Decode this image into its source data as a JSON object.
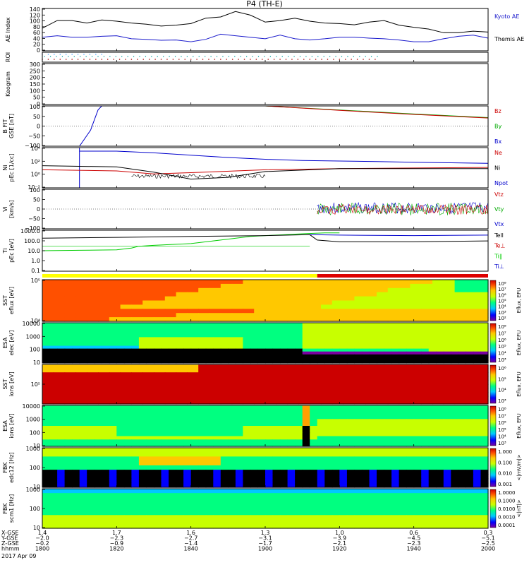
{
  "title": "P4 (TH-E)",
  "date": "2017 Apr 09",
  "colors": {
    "kyoto": "#1a1acc",
    "themis": "#000000",
    "bz": "#cc0000",
    "by": "#00aa00",
    "bx": "#0000cc",
    "ne": "#cc0000",
    "ni": "#000000",
    "npot": "#0000cc",
    "vtz": "#cc0000",
    "vty": "#00aa00",
    "vtx": "#0000cc",
    "tell": "#000000",
    "tepar": "#cc0000",
    "tipar": "#00cc00",
    "tiperp": "#0000cc",
    "roi_bar": "#ffff00",
    "roi_bar2": "#dd0000"
  },
  "chart_data": [
    {
      "type": "line",
      "name": "ae",
      "ylabel": "AE Index",
      "ylim": [
        0,
        140
      ],
      "yticks": [
        "140",
        "120",
        "100",
        "80",
        "60",
        "40",
        "20",
        "0"
      ],
      "legend": [
        "Kyoto AE",
        "Themis AE"
      ],
      "series": [
        {
          "name": "Kyoto AE",
          "x": [
            0,
            2,
            4,
            6,
            8,
            10,
            12,
            14,
            16,
            18,
            20,
            22,
            24,
            26,
            28,
            30,
            32,
            34,
            36,
            38,
            40,
            42,
            44,
            46,
            48,
            50,
            52,
            54,
            56,
            58,
            60
          ],
          "y": [
            45,
            50,
            45,
            45,
            48,
            50,
            40,
            38,
            35,
            36,
            30,
            38,
            55,
            50,
            45,
            40,
            52,
            40,
            36,
            40,
            45,
            45,
            42,
            40,
            36,
            30,
            30,
            40,
            48,
            52,
            42
          ]
        },
        {
          "name": "Themis AE",
          "x": [
            0,
            2,
            4,
            6,
            8,
            10,
            12,
            14,
            16,
            18,
            20,
            22,
            24,
            26,
            28,
            30,
            32,
            34,
            36,
            38,
            40,
            42,
            44,
            46,
            48,
            50,
            52,
            54,
            56,
            58,
            60
          ],
          "y": [
            75,
            100,
            100,
            92,
            102,
            98,
            92,
            88,
            82,
            85,
            90,
            108,
            112,
            130,
            118,
            95,
            100,
            108,
            98,
            92,
            90,
            86,
            95,
            100,
            85,
            78,
            72,
            60,
            60,
            65,
            62
          ]
        }
      ]
    },
    {
      "type": "scatter",
      "name": "roi",
      "ylabel": "ROI"
    },
    {
      "type": "heatmap",
      "name": "keogram",
      "ylabel": "Keogram",
      "ylim": [
        0,
        300
      ],
      "yticks": [
        "300",
        "250",
        "200",
        "150",
        "100",
        "50",
        "0"
      ]
    },
    {
      "type": "line",
      "name": "bfield",
      "ylabel": "B FIT GSE [nT]",
      "ylim": [
        -100,
        100
      ],
      "yticks": [
        "100",
        "50",
        "0",
        "−50",
        "−100"
      ],
      "legend": [
        "Bz",
        "By",
        "Bx"
      ],
      "series": [
        {
          "name": "Bx",
          "x": [
            5,
            6.5,
            7,
            7.5,
            8
          ],
          "y": [
            -100,
            -20,
            30,
            80,
            100
          ]
        },
        {
          "name": "By",
          "x": [
            30,
            40,
            50,
            60
          ],
          "y": [
            100,
            80,
            60,
            42
          ]
        },
        {
          "name": "Bz",
          "x": [
            30,
            40,
            50,
            60
          ],
          "y": [
            100,
            78,
            58,
            40
          ]
        }
      ]
    },
    {
      "type": "line",
      "name": "density",
      "ylabel": "Ni pEc [1/cc]",
      "yticks": [
        "10⁴",
        "10²",
        "10⁰",
        "10⁻²"
      ],
      "legend": [
        "Ne",
        "Ni",
        "Npot"
      ],
      "series": [
        {
          "name": "Ne",
          "x": [
            0,
            10,
            15,
            20,
            30,
            40,
            50,
            60
          ],
          "y": [
            0.8,
            0.6,
            0.1,
            0.3,
            0.8,
            1.0,
            1.1,
            1.2
          ]
        },
        {
          "name": "Ni",
          "x": [
            0,
            10,
            15,
            20,
            25,
            30,
            40,
            50,
            60
          ],
          "y": [
            1.5,
            1.3,
            0.4,
            -0.8,
            -0.5,
            0.5,
            1.0,
            1.0,
            1.0
          ]
        },
        {
          "name": "Npot",
          "x": [
            5,
            10,
            15,
            20,
            25,
            30,
            35,
            40,
            45,
            50,
            55,
            60
          ],
          "y": [
            4,
            4,
            3.7,
            3.3,
            2.9,
            2.6,
            2.4,
            2.3,
            2.2,
            2.1,
            2.0,
            1.9
          ]
        }
      ]
    },
    {
      "type": "line",
      "name": "velocity",
      "ylabel": "Vi [km/s]",
      "ylim": [
        -100,
        100
      ],
      "yticks": [
        "100",
        "50",
        "0",
        "−50",
        "−100"
      ],
      "legend": [
        "Vtz",
        "Vty",
        "Vtx"
      ]
    },
    {
      "type": "line",
      "name": "temperature",
      "ylabel": "Ti pEc [eV]",
      "yticks": [
        "1000.0",
        "100.0",
        "10.0",
        "1.0",
        "0.1"
      ],
      "legend": [
        "Tell",
        "Te⊥",
        "Ti∥",
        "Ti⊥"
      ],
      "series": [
        {
          "name": "Ti∥",
          "x": [
            0,
            5,
            10,
            12,
            13,
            15,
            20,
            25,
            28,
            30,
            35,
            38,
            40
          ],
          "y": [
            1.0,
            1.05,
            1.1,
            1.3,
            1.5,
            1.6,
            1.8,
            2.3,
            2.6,
            2.7,
            2.9,
            3.0,
            3.0
          ]
        },
        {
          "name": "Tell",
          "x": [
            0,
            10,
            20,
            30,
            36,
            37,
            40,
            50,
            60
          ],
          "y": [
            2.4,
            2.5,
            2.6,
            2.7,
            2.8,
            2.2,
            2.0,
            2.0,
            2.1
          ]
        },
        {
          "name": "Ti⊥",
          "x": [
            36,
            40,
            50,
            60
          ],
          "y": [
            2.8,
            2.75,
            2.7,
            2.75
          ]
        }
      ]
    },
    {
      "type": "heatmap",
      "name": "sst_e",
      "ylabel": "SST eflux [eV]",
      "yticks": [
        "10⁵",
        "10⁴"
      ],
      "colorbar": [
        "10⁸",
        "10⁷",
        "10⁶",
        "10⁵",
        "10⁴",
        "10³",
        "10²"
      ],
      "colorbar_label": "Eflux, EFU"
    },
    {
      "type": "heatmap",
      "name": "esa_e",
      "ylabel": "ESA elec [eV]",
      "yticks": [
        "10000",
        "1000",
        "100",
        "10"
      ],
      "colorbar": [
        "10⁸",
        "10⁷",
        "10⁶",
        "10⁵",
        "10⁴",
        "10³"
      ],
      "colorbar_label": "Eflux, EFU"
    },
    {
      "type": "heatmap",
      "name": "sst_i",
      "ylabel": "SST ions [eV]",
      "yticks": [
        "10⁵"
      ],
      "colorbar": [
        "10⁶",
        "10⁵",
        "10⁴",
        "10³"
      ],
      "colorbar_label": "Eflux, EFU"
    },
    {
      "type": "heatmap",
      "name": "esa_i",
      "ylabel": "ESA ions [eV]",
      "yticks": [
        "10000",
        "1000",
        "100",
        "10"
      ],
      "colorbar": [
        "10⁸",
        "10⁷",
        "10⁶",
        "10⁵",
        "10⁴",
        "10³"
      ],
      "colorbar_label": "Eflux, EFU"
    },
    {
      "type": "heatmap",
      "name": "fbk_e",
      "ylabel": "FBK edc12 [Hz]",
      "yticks": [
        "1000",
        "100",
        "10"
      ],
      "colorbar": [
        "1.000",
        "0.100",
        "0.010",
        "0.001"
      ],
      "colorbar_label": "<|mV/m|>"
    },
    {
      "type": "heatmap",
      "name": "fbk_b",
      "ylabel": "FBK scm1 [Hz]",
      "yticks": [
        "1000",
        "100",
        "10"
      ],
      "colorbar": [
        "1.0000",
        "0.1000",
        "0.0100",
        "0.0010",
        "0.0001"
      ],
      "colorbar_label": "<|nT|>"
    }
  ],
  "xaxis": {
    "row_labels": [
      "X-GSE",
      "Y-GSE",
      "Z-GSE",
      "hhmm"
    ],
    "columns": [
      {
        "x": "1.4",
        "y": "−2.0",
        "z": "−0.2",
        "t": "1800"
      },
      {
        "x": "1.7",
        "y": "−2.3",
        "z": "−0.9",
        "t": "1820"
      },
      {
        "x": "1.6",
        "y": "−2.7",
        "z": "−1.4",
        "t": "1840"
      },
      {
        "x": "1.3",
        "y": "−3.1",
        "z": "−1.7",
        "t": "1900"
      },
      {
        "x": "1.0",
        "y": "−3.9",
        "z": "−2.1",
        "t": "1920"
      },
      {
        "x": "0.6",
        "y": "−4.5",
        "z": "−2.3",
        "t": "1940"
      },
      {
        "x": "0.3",
        "y": "−5.1",
        "z": "−2.5",
        "t": "2000"
      }
    ]
  }
}
